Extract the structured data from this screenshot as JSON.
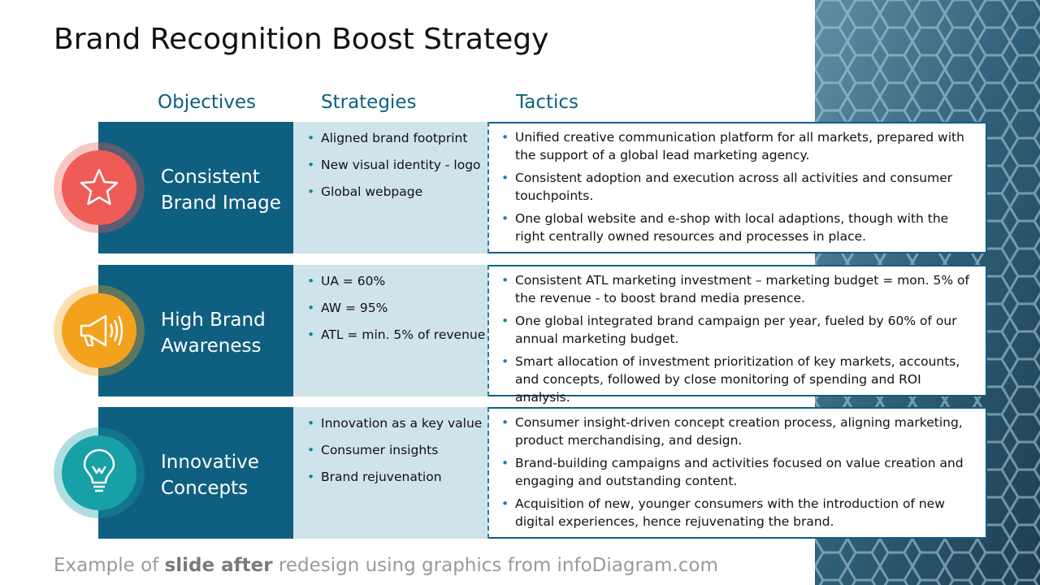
{
  "title": "Brand Recognition Boost Strategy",
  "headers": {
    "objectives": "Objectives",
    "strategies": "Strategies",
    "tactics": "Tactics"
  },
  "rows": [
    {
      "objective": "Consistent Brand Image",
      "strategies": [
        "Aligned brand footprint",
        "New visual identity - logo",
        "Global webpage"
      ],
      "tactics": [
        "Unified creative communication platform for all markets, prepared with the support of a global lead marketing agency.",
        "Consistent adoption and execution across all activities and consumer touchpoints.",
        "One global website and e-shop with local adaptions, though with the right centrally owned resources and processes in place."
      ]
    },
    {
      "objective": "High Brand Awareness",
      "strategies": [
        "UA = 60%",
        "AW = 95%",
        "ATL = min. 5% of revenue"
      ],
      "tactics": [
        "Consistent ATL marketing investment – marketing budget = mon. 5% of the revenue - to boost brand media presence.",
        "One global integrated brand campaign per year, fueled by 60% of our annual marketing budget.",
        "Smart allocation of investment prioritization of key markets, accounts, and concepts, followed by close monitoring of spending and ROI analysis."
      ]
    },
    {
      "objective": "Innovative Concepts",
      "strategies": [
        "Innovation as a key value",
        "Consumer insights",
        "Brand rejuvenation"
      ],
      "tactics": [
        "Consumer insight-driven concept creation process, aligning marketing, product merchandising, and design.",
        "Brand-building campaigns and activities focused on value creation and engaging and outstanding content.",
        "Acquisition of new, younger consumers with the introduction of new digital experiences, hence rejuvenating the brand."
      ]
    }
  ],
  "footer": {
    "prefix": "Example of ",
    "bold": "slide after",
    "suffix": " redesign using graphics from infoDiagram.com"
  }
}
